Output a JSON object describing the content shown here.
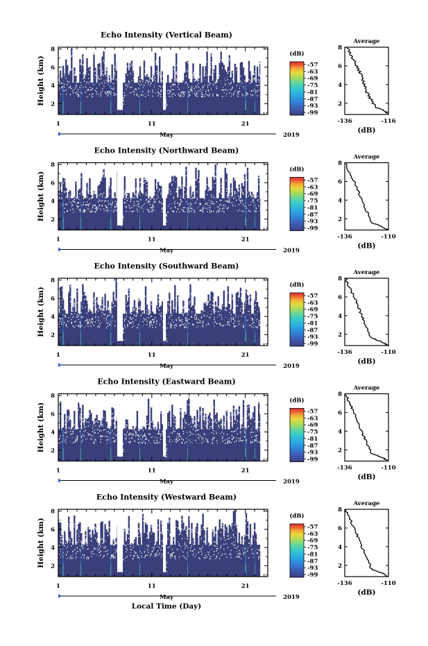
{
  "chart_data": [
    {
      "type": "heatmap",
      "title": "Echo Intensity (Vertical Beam)",
      "ylabel": "Height (km)",
      "yticks": [
        "2",
        "4",
        "6",
        "8"
      ],
      "xticks": [
        "1",
        "11",
        "21"
      ],
      "xlabel": "May",
      "year": "2019",
      "colorbar": {
        "unit": "(dB)",
        "ticks": [
          "-57",
          "-63",
          "-69",
          "-75",
          "-81",
          "-87",
          "-93",
          "-99"
        ]
      },
      "average": {
        "title": "Average",
        "xlabel": "(dB)",
        "xticks": [
          "-136",
          "-116"
        ],
        "yticks": [
          "2",
          "4",
          "6",
          "8"
        ],
        "xlim": [
          -136,
          -116
        ],
        "ylim": [
          0.8,
          8
        ],
        "profile": [
          [
            -116,
            0.8
          ],
          [
            -118,
            1.2
          ],
          [
            -122,
            1.6
          ],
          [
            -124,
            2.4
          ],
          [
            -126,
            3.2
          ],
          [
            -127,
            4.0
          ],
          [
            -128.5,
            5.0
          ],
          [
            -130,
            5.8
          ],
          [
            -132,
            6.6
          ],
          [
            -133.5,
            7.3
          ],
          [
            -135,
            8
          ]
        ]
      }
    },
    {
      "type": "heatmap",
      "title": "Echo Intensity (Northward Beam)",
      "ylabel": "Height (km)",
      "yticks": [
        "2",
        "4",
        "6",
        "8"
      ],
      "xticks": [
        "1",
        "11",
        "21"
      ],
      "xlabel": "May",
      "year": "2019",
      "colorbar": {
        "unit": "(dB)",
        "ticks": [
          "-57",
          "-63",
          "-69",
          "-75",
          "-81",
          "-87",
          "-93",
          "-99"
        ]
      },
      "average": {
        "title": "Average",
        "xlabel": "(dB)",
        "xticks": [
          "-136",
          "-110"
        ],
        "yticks": [
          "2",
          "4",
          "6",
          "8"
        ],
        "xlim": [
          -136,
          -110
        ],
        "ylim": [
          0.8,
          8
        ],
        "profile": [
          [
            -110,
            0.8
          ],
          [
            -114,
            1.2
          ],
          [
            -120,
            1.6
          ],
          [
            -122,
            2.4
          ],
          [
            -124,
            3.2
          ],
          [
            -126,
            4.0
          ],
          [
            -128,
            5.0
          ],
          [
            -130,
            5.8
          ],
          [
            -132,
            6.6
          ],
          [
            -134,
            7.3
          ],
          [
            -135.5,
            8
          ]
        ]
      }
    },
    {
      "type": "heatmap",
      "title": "Echo Intensity (Southward Beam)",
      "ylabel": "Height (km)",
      "yticks": [
        "2",
        "4",
        "6",
        "8"
      ],
      "xticks": [
        "1",
        "11",
        "21"
      ],
      "xlabel": "May",
      "year": "2019",
      "colorbar": {
        "unit": "(dB)",
        "ticks": [
          "-57",
          "-63",
          "-69",
          "-75",
          "-81",
          "-87",
          "-93",
          "-99"
        ]
      },
      "average": {
        "title": "Average",
        "xlabel": "(dB)",
        "xticks": [
          "-136",
          "-110"
        ],
        "yticks": [
          "2",
          "4",
          "6",
          "8"
        ],
        "xlim": [
          -136,
          -110
        ],
        "ylim": [
          0.8,
          8
        ],
        "profile": [
          [
            -110,
            0.8
          ],
          [
            -114,
            1.2
          ],
          [
            -120,
            1.6
          ],
          [
            -122,
            2.4
          ],
          [
            -124,
            3.2
          ],
          [
            -126,
            4.0
          ],
          [
            -128,
            5.0
          ],
          [
            -130,
            5.8
          ],
          [
            -132,
            6.6
          ],
          [
            -134,
            7.3
          ],
          [
            -135.5,
            8
          ]
        ]
      }
    },
    {
      "type": "heatmap",
      "title": "Echo Intensity (Eastward Beam)",
      "ylabel": "Height (km)",
      "yticks": [
        "2",
        "4",
        "6",
        "8"
      ],
      "xticks": [
        "1",
        "11",
        "21"
      ],
      "xlabel": "May",
      "year": "2019",
      "colorbar": {
        "unit": "(dB)",
        "ticks": [
          "-57",
          "-63",
          "-69",
          "-75",
          "-81",
          "-87",
          "-93",
          "-99"
        ]
      },
      "average": {
        "title": "Average",
        "xlabel": "(dB)",
        "xticks": [
          "-136",
          "-110"
        ],
        "yticks": [
          "2",
          "4",
          "6",
          "8"
        ],
        "xlim": [
          -136,
          -110
        ],
        "ylim": [
          0.8,
          8
        ],
        "profile": [
          [
            -110,
            0.8
          ],
          [
            -114,
            1.2
          ],
          [
            -120,
            1.6
          ],
          [
            -122,
            2.4
          ],
          [
            -124,
            3.2
          ],
          [
            -126,
            4.0
          ],
          [
            -128,
            5.0
          ],
          [
            -130,
            5.8
          ],
          [
            -132,
            6.6
          ],
          [
            -134,
            7.3
          ],
          [
            -135.5,
            8
          ]
        ]
      }
    },
    {
      "type": "heatmap",
      "title": "Echo Intensity (Westward Beam)",
      "ylabel": "Height (km)",
      "yticks": [
        "2",
        "4",
        "6",
        "8"
      ],
      "xticks": [
        "1",
        "11",
        "21"
      ],
      "xlabel": "May",
      "year": "2019",
      "colorbar": {
        "unit": "(dB)",
        "ticks": [
          "-57",
          "-63",
          "-69",
          "-75",
          "-81",
          "-87",
          "-93",
          "-99"
        ]
      },
      "average": {
        "title": "Average",
        "xlabel": "(dB)",
        "xticks": [
          "-136",
          "-110"
        ],
        "yticks": [
          "2",
          "4",
          "6",
          "8"
        ],
        "xlim": [
          -136,
          -110
        ],
        "ylim": [
          0.8,
          8
        ],
        "profile": [
          [
            -110,
            0.8
          ],
          [
            -114,
            1.2
          ],
          [
            -120,
            1.6
          ],
          [
            -122,
            2.4
          ],
          [
            -124,
            3.2
          ],
          [
            -126,
            4.0
          ],
          [
            -128,
            5.0
          ],
          [
            -130,
            5.8
          ],
          [
            -132,
            6.6
          ],
          [
            -134,
            7.3
          ],
          [
            -135.5,
            8
          ]
        ]
      }
    }
  ],
  "figure": {
    "xlabel_bottom": "Local Time (Day)",
    "colors": {
      "background_echo": "#3a3f7a",
      "colorbar": [
        "#3c3f80",
        "#3f5ab0",
        "#2f82d8",
        "#2aa8e0",
        "#36c9d0",
        "#5ed6a0",
        "#a8dc5a",
        "#e8d83a",
        "#f4a23a",
        "#ec5a30",
        "#d83030"
      ]
    }
  }
}
